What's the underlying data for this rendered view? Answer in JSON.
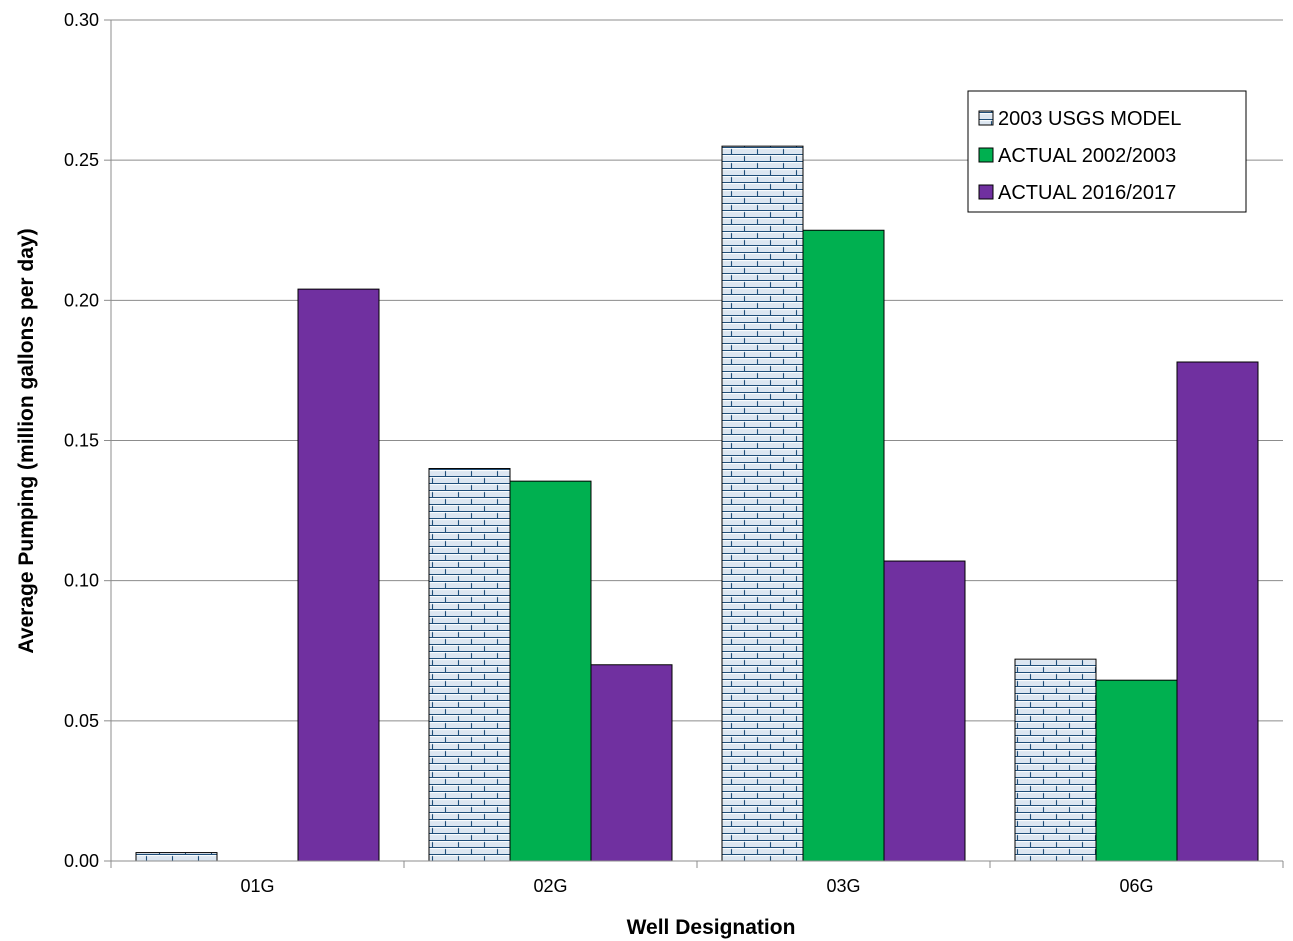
{
  "chart_data": {
    "type": "bar",
    "title": "",
    "xlabel": "Well Designation",
    "ylabel": "Average Pumping (million gallons per day)",
    "categories": [
      "01G",
      "02G",
      "03G",
      "06G"
    ],
    "ylim": [
      0,
      0.3
    ],
    "yticks": [
      "0.00",
      "0.05",
      "0.10",
      "0.15",
      "0.20",
      "0.25",
      "0.30"
    ],
    "ytick_values": [
      0,
      0.05,
      0.1,
      0.15,
      0.2,
      0.25,
      0.3
    ],
    "grid": "horizontal",
    "legend_position": "top-right",
    "series": [
      {
        "name": "2003 USGS MODEL",
        "values": [
          0.003,
          0.14,
          0.255,
          0.072
        ],
        "color": "#dce6f1",
        "pattern": "brick"
      },
      {
        "name": "ACTUAL 2002/2003",
        "values": [
          0,
          0.1355,
          0.225,
          0.0645
        ],
        "color": "#00b050"
      },
      {
        "name": "ACTUAL 2016/2017",
        "values": [
          0.204,
          0.07,
          0.107,
          0.178
        ],
        "color": "#7030a0"
      }
    ]
  }
}
